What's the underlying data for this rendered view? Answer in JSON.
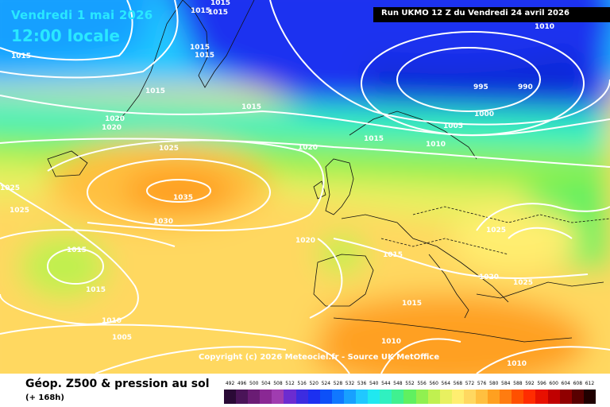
{
  "header": {
    "date": "Vendredi 1 mai 2026",
    "time": "12:00 locale",
    "run": "Run UKMO 12 Z du Vendredi 24 avril 2026"
  },
  "footer": {
    "title": "Géop. Z500 & pression au sol",
    "lead": "(+ 168h)",
    "copyright": "Copyright (c) 2026 Meteociel.fr - Source UK MetOffice"
  },
  "colorbar": {
    "ticks": [
      "492",
      "496",
      "500",
      "504",
      "508",
      "512",
      "516",
      "520",
      "524",
      "528",
      "532",
      "536",
      "540",
      "544",
      "548",
      "552",
      "556",
      "560",
      "564",
      "568",
      "572",
      "576",
      "580",
      "584",
      "588",
      "592",
      "596",
      "600",
      "604",
      "608",
      "612"
    ],
    "colors": [
      "#2a0a36",
      "#4a1458",
      "#6a1c74",
      "#8a2894",
      "#a03cb0",
      "#6c2cd0",
      "#3c2ce0",
      "#1c30f0",
      "#0c50f8",
      "#1078ff",
      "#18a0ff",
      "#20c8ff",
      "#20e8f0",
      "#30f0c0",
      "#40f090",
      "#60f060",
      "#90f050",
      "#c0f050",
      "#e8f060",
      "#ffee70",
      "#ffd860",
      "#ffc040",
      "#ffa020",
      "#ff7c10",
      "#ff5000",
      "#ff2c00",
      "#e81000",
      "#c00000",
      "#900000",
      "#580000",
      "#200000"
    ]
  },
  "isobar_labels": [
    "1015",
    "1015",
    "1015",
    "1015",
    "1015",
    "1015",
    "1015",
    "1015",
    "1015",
    "1015",
    "1015",
    "1015",
    "1015",
    "1020",
    "1020",
    "1020",
    "1020",
    "1020",
    "1025",
    "1025",
    "1025",
    "1025",
    "1025",
    "1030",
    "1035",
    "1010",
    "1010",
    "1010",
    "1010",
    "1010",
    "1005",
    "1005",
    "1000",
    "995",
    "990"
  ]
}
